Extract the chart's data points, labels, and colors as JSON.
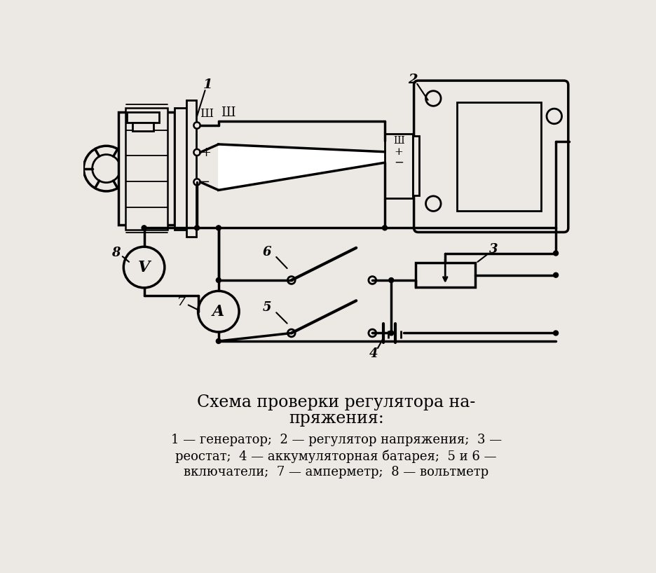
{
  "bg_color": "#ece9e4",
  "lc": "#000000",
  "title_line1": "Схема проверки регулятора на-",
  "title_line2": "пряжения:",
  "cap_line1": "1 — генератор;  2 — регулятор напряжения;  3 —",
  "cap_line2": "реостат;  4 — аккумуляторная батарея;  5 и 6 —",
  "cap_line3": "включатели;  7 — амперметр;  8 — вольтметр"
}
